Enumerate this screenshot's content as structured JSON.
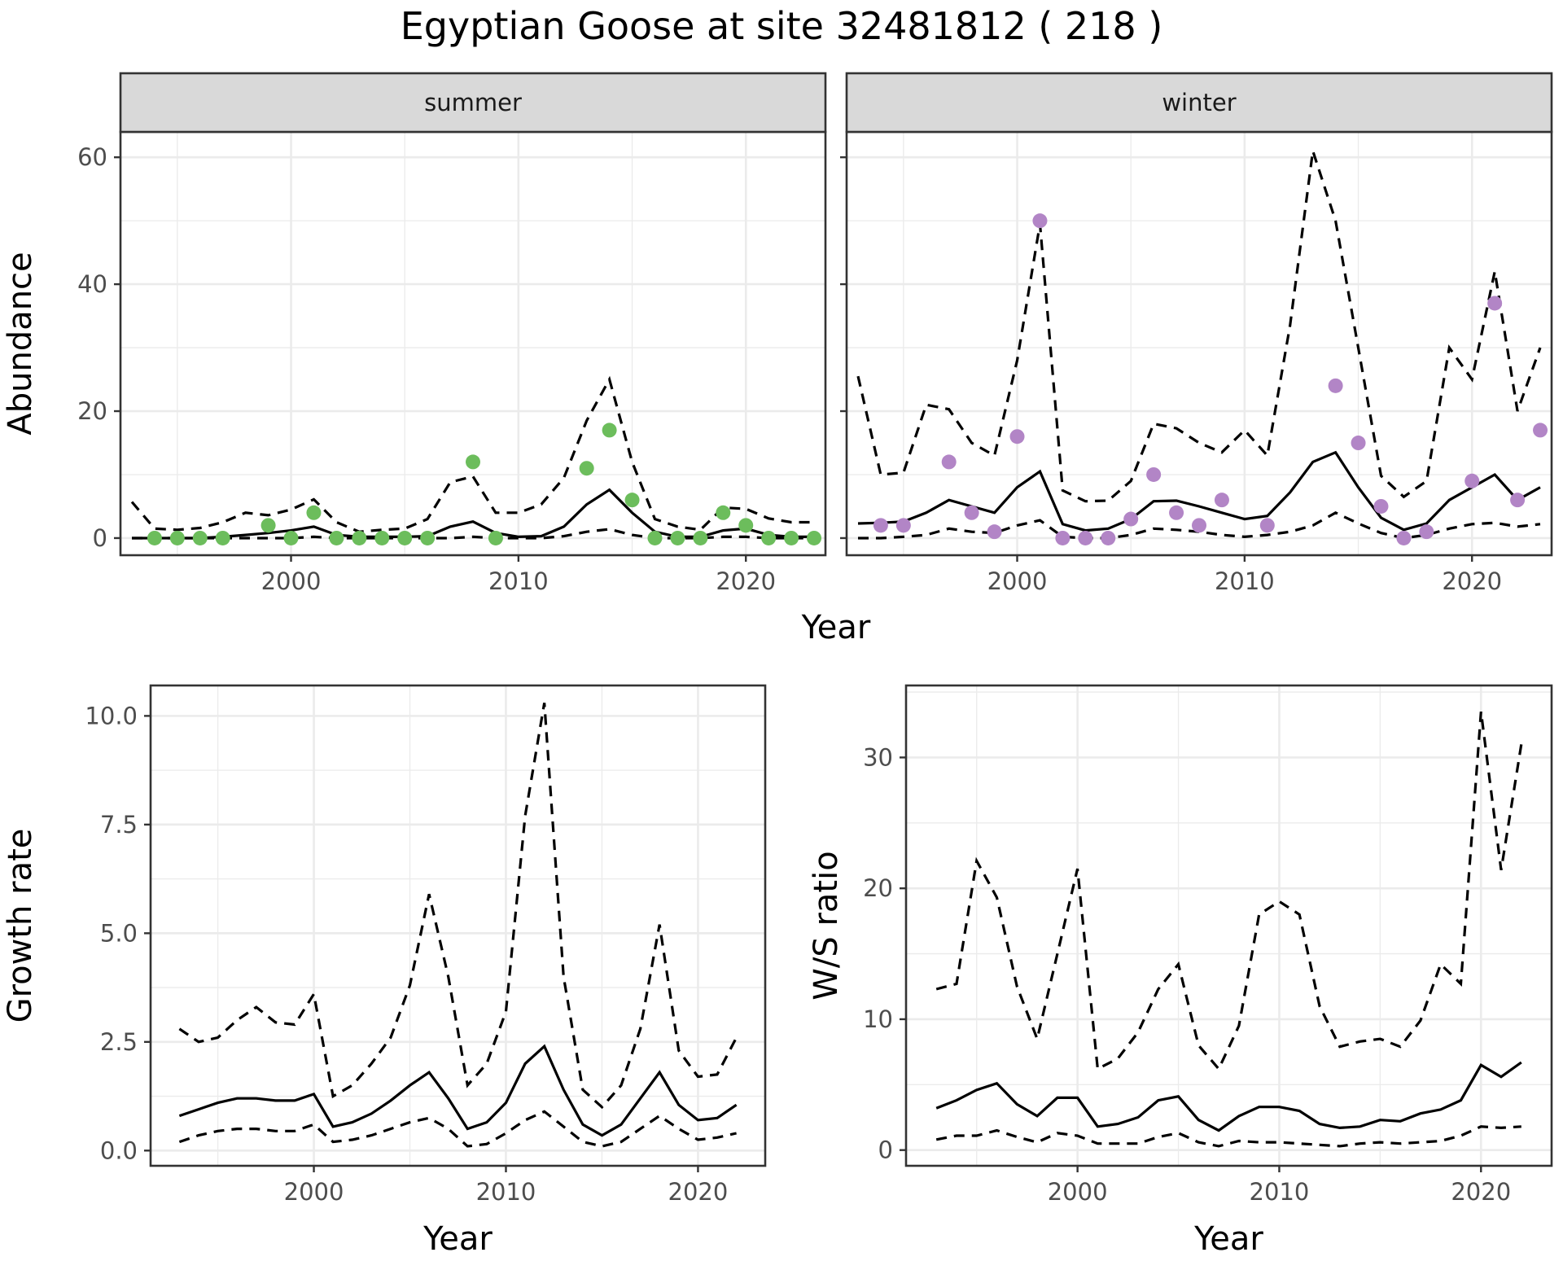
{
  "title": "Egyptian Goose at site 32481812 ( 218 )",
  "colors": {
    "summer": "#6cbd5c",
    "winter": "#b285c6",
    "line": "#000000",
    "grid": "#ebebeb",
    "strip": "#d9d9d9"
  },
  "chart_data": [
    {
      "type": "line",
      "panel": "summer",
      "strip": "summer",
      "xlabel": "",
      "ylabel": "Abundance",
      "xlim": [
        1992.5,
        2023.5
      ],
      "ylim": [
        -2.7,
        64
      ],
      "xticks": [
        2000,
        2010,
        2020
      ],
      "yticks": [
        0,
        20,
        40,
        60
      ],
      "x": [
        1993,
        1994,
        1995,
        1996,
        1997,
        1998,
        1999,
        2000,
        2001,
        2002,
        2003,
        2004,
        2005,
        2006,
        2007,
        2008,
        2009,
        2010,
        2011,
        2012,
        2013,
        2014,
        2015,
        2016,
        2017,
        2018,
        2019,
        2020,
        2021,
        2022,
        2023
      ],
      "estimate": [
        0,
        0,
        0,
        0,
        0.2,
        0.5,
        0.8,
        1.2,
        1.8,
        0.5,
        0.2,
        0.2,
        0.2,
        0.3,
        1.8,
        2.6,
        0.8,
        0.2,
        0.3,
        1.8,
        5.3,
        7.6,
        4,
        1,
        0.2,
        0.2,
        1.2,
        1.5,
        0.5,
        0.2,
        0.2
      ],
      "upper": [
        5.7,
        1.5,
        1.3,
        1.6,
        2.5,
        4,
        3.6,
        4.5,
        6.1,
        2.5,
        1,
        1.3,
        1.5,
        3,
        8.8,
        9.7,
        4,
        4,
        5.3,
        9.5,
        18.5,
        25,
        12,
        3,
        1.8,
        1.3,
        4.8,
        4.6,
        3.1,
        2.5,
        2.5
      ],
      "lower": [
        0,
        0,
        0,
        0,
        0,
        0,
        0,
        0,
        0.2,
        0,
        0,
        0,
        0,
        0,
        0,
        0.2,
        0,
        0,
        0,
        0.3,
        1,
        1.4,
        0.5,
        0,
        0,
        0,
        0.2,
        0.2,
        0,
        0,
        0
      ],
      "observed_x": [
        1994,
        1995,
        1996,
        1997,
        1999,
        2000,
        2001,
        2002,
        2003,
        2004,
        2005,
        2006,
        2008,
        2009,
        2013,
        2014,
        2015,
        2016,
        2017,
        2018,
        2019,
        2020,
        2021,
        2022,
        2023
      ],
      "observed_y": [
        0,
        0,
        0,
        0,
        2,
        0,
        4,
        0,
        0,
        0,
        0,
        0,
        12,
        0,
        11,
        17,
        6,
        0,
        0,
        0,
        4,
        2,
        0,
        0,
        0
      ]
    },
    {
      "type": "line",
      "panel": "winter",
      "strip": "winter",
      "xlabel": "",
      "ylabel": "",
      "xlim": [
        1992.5,
        2023.5
      ],
      "ylim": [
        -2.7,
        64
      ],
      "xticks": [
        2000,
        2010,
        2020
      ],
      "yticks": [
        0,
        20,
        40,
        60
      ],
      "x": [
        1993,
        1994,
        1995,
        1996,
        1997,
        1998,
        1999,
        2000,
        2001,
        2002,
        2003,
        2004,
        2005,
        2006,
        2007,
        2008,
        2009,
        2010,
        2011,
        2012,
        2013,
        2014,
        2015,
        2016,
        2017,
        2018,
        2019,
        2020,
        2021,
        2022,
        2023
      ],
      "estimate": [
        2.3,
        2.4,
        2.6,
        4,
        6,
        5,
        4,
        8,
        10.5,
        2.2,
        1.2,
        1.5,
        3,
        5.8,
        5.9,
        5,
        4,
        3,
        3.5,
        7.2,
        12,
        13.5,
        8,
        3.2,
        1.3,
        2.3,
        6,
        8,
        10,
        6,
        8
      ],
      "upper": [
        25.5,
        10,
        10.3,
        21,
        20.3,
        15,
        13,
        28,
        49.5,
        7.5,
        5.8,
        5.9,
        9,
        18,
        17.3,
        15,
        13.5,
        17,
        13,
        33.5,
        61,
        50,
        30,
        9.8,
        6.5,
        9,
        30,
        25,
        42,
        20,
        30
      ],
      "lower": [
        0,
        0,
        0.2,
        0.5,
        1.5,
        1,
        0.8,
        2,
        2.8,
        0.2,
        0,
        0,
        0.5,
        1.5,
        1.3,
        1,
        0.5,
        0.2,
        0.5,
        1,
        2,
        4,
        2.3,
        0.8,
        0,
        0.5,
        1.5,
        2.2,
        2.4,
        1.8,
        2.2
      ],
      "observed_x": [
        1994,
        1995,
        1997,
        1998,
        1999,
        2000,
        2001,
        2002,
        2003,
        2004,
        2005,
        2006,
        2007,
        2008,
        2009,
        2011,
        2014,
        2015,
        2016,
        2017,
        2018,
        2020,
        2021,
        2022,
        2023
      ],
      "observed_y": [
        2,
        2,
        12,
        4,
        1,
        16,
        50,
        0,
        0,
        0,
        3,
        10,
        4,
        2,
        6,
        2,
        24,
        15,
        5,
        0,
        1,
        9,
        37,
        6,
        17
      ]
    },
    {
      "type": "line",
      "panel": "growth",
      "xlabel": "Year",
      "ylabel": "Growth rate",
      "xlim": [
        1991.5,
        2023.5
      ],
      "ylim": [
        -0.35,
        10.7
      ],
      "xticks": [
        2000,
        2010,
        2020
      ],
      "yticks": [
        0,
        2.5,
        5,
        7.5,
        10
      ],
      "ytick_labels": [
        "0.0",
        "2.5",
        "5.0",
        "7.5",
        "10.0"
      ],
      "x": [
        1993,
        1994,
        1995,
        1996,
        1997,
        1998,
        1999,
        2000,
        2001,
        2002,
        2003,
        2004,
        2005,
        2006,
        2007,
        2008,
        2009,
        2010,
        2011,
        2012,
        2013,
        2014,
        2015,
        2016,
        2017,
        2018,
        2019,
        2020,
        2021,
        2022
      ],
      "estimate": [
        0.8,
        0.95,
        1.1,
        1.2,
        1.2,
        1.15,
        1.15,
        1.3,
        0.55,
        0.65,
        0.85,
        1.15,
        1.5,
        1.8,
        1.2,
        0.5,
        0.65,
        1.1,
        2,
        2.4,
        1.4,
        0.6,
        0.35,
        0.6,
        1.2,
        1.8,
        1.05,
        0.7,
        0.75,
        1.05
      ],
      "upper": [
        2.8,
        2.5,
        2.6,
        3,
        3.3,
        2.95,
        2.9,
        3.6,
        1.25,
        1.5,
        2,
        2.6,
        3.8,
        5.9,
        4,
        1.5,
        2,
        3.2,
        7.7,
        10.3,
        4,
        1.4,
        1,
        1.5,
        2.8,
        5.2,
        2.3,
        1.7,
        1.75,
        2.6
      ],
      "lower": [
        0.2,
        0.35,
        0.45,
        0.5,
        0.5,
        0.45,
        0.45,
        0.6,
        0.2,
        0.25,
        0.35,
        0.5,
        0.65,
        0.75,
        0.5,
        0.1,
        0.15,
        0.4,
        0.7,
        0.9,
        0.55,
        0.2,
        0.1,
        0.2,
        0.5,
        0.8,
        0.5,
        0.25,
        0.3,
        0.4
      ]
    },
    {
      "type": "line",
      "panel": "ws-ratio",
      "xlabel": "Year",
      "ylabel": "W/S ratio",
      "xlim": [
        1991.5,
        2023.5
      ],
      "ylim": [
        -1.2,
        35.5
      ],
      "xticks": [
        2000,
        2010,
        2020
      ],
      "yticks": [
        0,
        10,
        20,
        30
      ],
      "x": [
        1993,
        1994,
        1995,
        1996,
        1997,
        1998,
        1999,
        2000,
        2001,
        2002,
        2003,
        2004,
        2005,
        2006,
        2007,
        2008,
        2009,
        2010,
        2011,
        2012,
        2013,
        2014,
        2015,
        2016,
        2017,
        2018,
        2019,
        2020,
        2021,
        2022
      ],
      "estimate": [
        3.2,
        3.8,
        4.6,
        5.1,
        3.5,
        2.6,
        4,
        4,
        1.8,
        2,
        2.5,
        3.8,
        4.1,
        2.3,
        1.5,
        2.6,
        3.3,
        3.3,
        3,
        2,
        1.7,
        1.8,
        2.3,
        2.2,
        2.8,
        3.1,
        3.8,
        6.5,
        5.6,
        6.7
      ],
      "upper": [
        12.3,
        12.7,
        22.1,
        19.3,
        12.5,
        8.5,
        15,
        21.5,
        6.2,
        7,
        9,
        12.3,
        14.2,
        8,
        6.2,
        9.5,
        18,
        19,
        18,
        11,
        7.9,
        8.3,
        8.5,
        7.9,
        9.9,
        14.2,
        12.7,
        33.5,
        21.4,
        31
      ],
      "lower": [
        0.8,
        1.1,
        1.1,
        1.5,
        1,
        0.6,
        1.3,
        1.1,
        0.5,
        0.5,
        0.5,
        1,
        1.3,
        0.6,
        0.3,
        0.7,
        0.6,
        0.6,
        0.5,
        0.4,
        0.3,
        0.5,
        0.6,
        0.5,
        0.6,
        0.7,
        1.1,
        1.8,
        1.7,
        1.8
      ]
    }
  ]
}
